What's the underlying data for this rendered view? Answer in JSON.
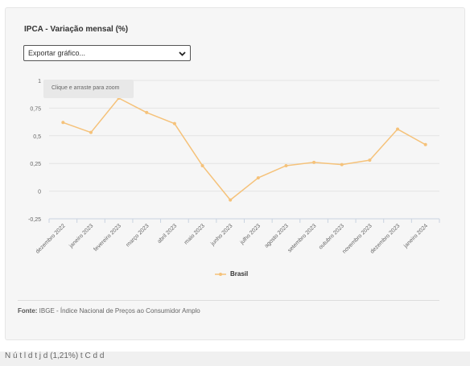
{
  "chart_data": {
    "type": "line",
    "title": "IPCA - Variação mensal (%)",
    "categories": [
      "dezembro 2022",
      "janeiro 2023",
      "fevereiro 2023",
      "março 2023",
      "abril 2023",
      "maio 2023",
      "junho 2023",
      "julho 2023",
      "agosto 2023",
      "setembro 2023",
      "outubro 2023",
      "novembro 2023",
      "dezembro 2023",
      "janeiro 2024"
    ],
    "series": [
      {
        "name": "Brasil",
        "values": [
          0.62,
          0.53,
          0.84,
          0.71,
          0.61,
          0.23,
          -0.08,
          0.12,
          0.23,
          0.26,
          0.24,
          0.28,
          0.56,
          0.42
        ]
      }
    ],
    "yticks": [
      "-0,25",
      "0",
      "0,25",
      "0,5",
      "0,75",
      "1"
    ],
    "ylim": [
      -0.25,
      1
    ],
    "grid": true,
    "legend_position": "bottom-center",
    "series_color": "#f5c27a"
  },
  "controls": {
    "export_label": "Exportar gráfico...",
    "zoom_hint": "Clique e arraste para zoom"
  },
  "footer": {
    "source_prefix": "Fonte:",
    "source_text": " IBGE - Índice Nacional de Preços ao Consumidor Amplo"
  },
  "page": {
    "cutoff_text": "N    ú  t    l  d       t                      j       d        (1,21%)  t  C         d         d"
  }
}
